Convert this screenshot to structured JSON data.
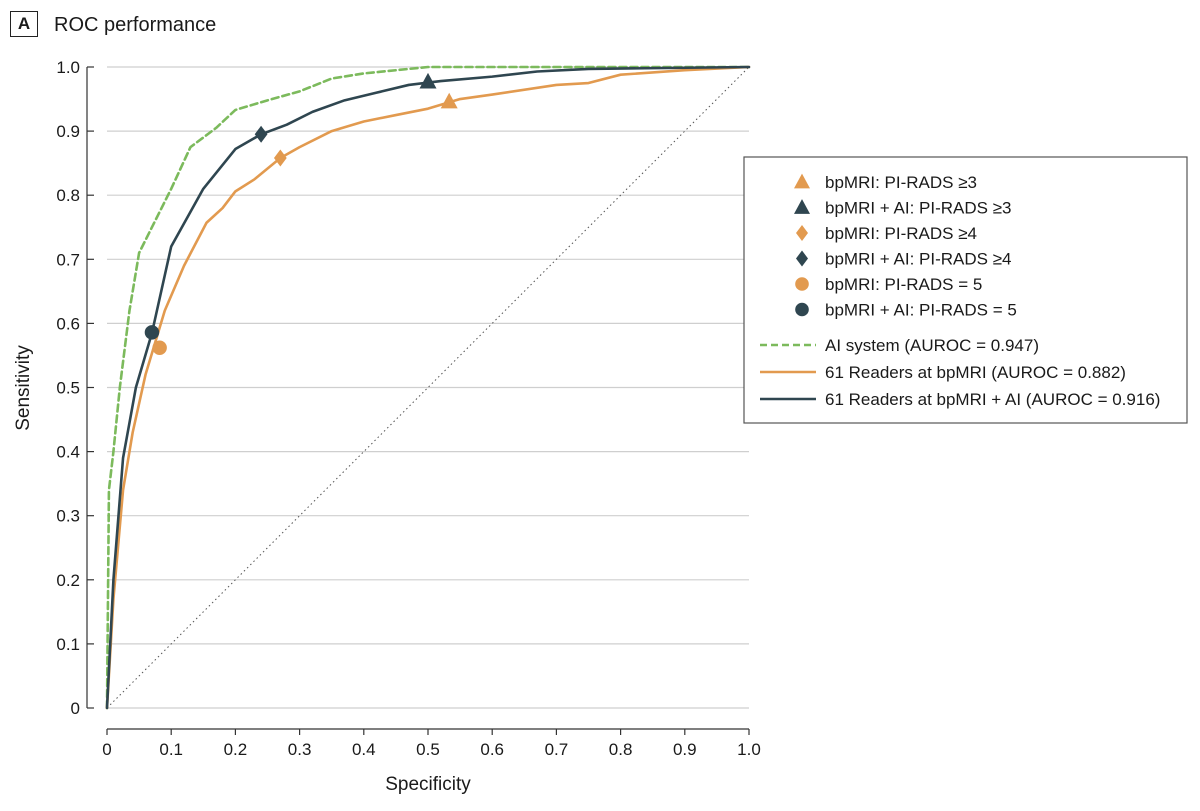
{
  "panel_letter": "A",
  "chart_data": {
    "type": "line",
    "title": "ROC performance",
    "xlabel": "Specificity",
    "ylabel": "Sensitivity",
    "xlim": [
      0,
      1
    ],
    "ylim": [
      0,
      1
    ],
    "xticks": [
      "0",
      "0.1",
      "0.2",
      "0.3",
      "0.4",
      "0.5",
      "0.6",
      "0.7",
      "0.8",
      "0.9",
      "1.0"
    ],
    "yticks": [
      "0",
      "0.1",
      "0.2",
      "0.3",
      "0.4",
      "0.5",
      "0.6",
      "0.7",
      "0.8",
      "0.9",
      "1.0"
    ],
    "grid": "horizontal",
    "legend_position": "right",
    "colors": {
      "ai_system": "#7cba5c",
      "readers": "#e29a4f",
      "readers_ai": "#2f4650",
      "chance": "#555555"
    },
    "series": [
      {
        "name": "AI system (AUROC = 0.947)",
        "style": "dashed",
        "color_key": "ai_system",
        "points": [
          [
            0,
            0
          ],
          [
            0.003,
            0.34
          ],
          [
            0.01,
            0.4
          ],
          [
            0.02,
            0.5
          ],
          [
            0.035,
            0.62
          ],
          [
            0.05,
            0.71
          ],
          [
            0.08,
            0.77
          ],
          [
            0.1,
            0.81
          ],
          [
            0.13,
            0.875
          ],
          [
            0.17,
            0.905
          ],
          [
            0.2,
            0.933
          ],
          [
            0.25,
            0.948
          ],
          [
            0.3,
            0.962
          ],
          [
            0.35,
            0.982
          ],
          [
            0.4,
            0.99
          ],
          [
            0.5,
            1.0
          ],
          [
            0.7,
            1.0
          ],
          [
            1.0,
            1.0
          ]
        ]
      },
      {
        "name": "61 Readers at bpMRI (AUROC = 0.882)",
        "style": "solid",
        "color_key": "readers",
        "points": [
          [
            0,
            0
          ],
          [
            0.01,
            0.17
          ],
          [
            0.025,
            0.34
          ],
          [
            0.04,
            0.43
          ],
          [
            0.06,
            0.52
          ],
          [
            0.09,
            0.62
          ],
          [
            0.12,
            0.69
          ],
          [
            0.155,
            0.757
          ],
          [
            0.18,
            0.78
          ],
          [
            0.2,
            0.806
          ],
          [
            0.23,
            0.825
          ],
          [
            0.27,
            0.858
          ],
          [
            0.3,
            0.875
          ],
          [
            0.35,
            0.9
          ],
          [
            0.4,
            0.915
          ],
          [
            0.45,
            0.925
          ],
          [
            0.5,
            0.935
          ],
          [
            0.55,
            0.95
          ],
          [
            0.6,
            0.957
          ],
          [
            0.7,
            0.972
          ],
          [
            0.75,
            0.975
          ],
          [
            0.8,
            0.988
          ],
          [
            0.9,
            0.995
          ],
          [
            1.0,
            1.0
          ]
        ]
      },
      {
        "name": "61 Readers at bpMRI + AI (AUROC = 0.916)",
        "style": "solid",
        "color_key": "readers_ai",
        "points": [
          [
            0,
            0
          ],
          [
            0.01,
            0.2
          ],
          [
            0.025,
            0.39
          ],
          [
            0.045,
            0.5
          ],
          [
            0.07,
            0.585
          ],
          [
            0.1,
            0.72
          ],
          [
            0.15,
            0.81
          ],
          [
            0.2,
            0.872
          ],
          [
            0.24,
            0.895
          ],
          [
            0.28,
            0.91
          ],
          [
            0.32,
            0.93
          ],
          [
            0.37,
            0.948
          ],
          [
            0.42,
            0.96
          ],
          [
            0.47,
            0.972
          ],
          [
            0.52,
            0.978
          ],
          [
            0.6,
            0.985
          ],
          [
            0.67,
            0.993
          ],
          [
            0.75,
            0.997
          ],
          [
            1.0,
            1.0
          ]
        ]
      }
    ],
    "reference_line": {
      "style": "dotted",
      "points": [
        [
          0,
          0
        ],
        [
          1,
          1
        ]
      ]
    },
    "operating_points": [
      {
        "name": "bpMRI: PI-RADS ≥3",
        "shape": "triangle",
        "color_key": "readers",
        "x": 0.533,
        "y": 0.946
      },
      {
        "name": "bpMRI + AI: PI-RADS ≥3",
        "shape": "triangle",
        "color_key": "readers_ai",
        "x": 0.5,
        "y": 0.977
      },
      {
        "name": "bpMRI: PI-RADS ≥4",
        "shape": "diamond",
        "color_key": "readers",
        "x": 0.27,
        "y": 0.858
      },
      {
        "name": "bpMRI + AI: PI-RADS ≥4",
        "shape": "diamond",
        "color_key": "readers_ai",
        "x": 0.24,
        "y": 0.895
      },
      {
        "name": "bpMRI: PI-RADS = 5",
        "shape": "circle",
        "color_key": "readers",
        "x": 0.082,
        "y": 0.562
      },
      {
        "name": "bpMRI + AI: PI-RADS = 5",
        "shape": "circle",
        "color_key": "readers_ai",
        "x": 0.07,
        "y": 0.586
      }
    ],
    "legend": {
      "markers": [
        {
          "label": "bpMRI: PI-RADS ≥3",
          "shape": "triangle",
          "color_key": "readers"
        },
        {
          "label": "bpMRI + AI: PI-RADS ≥3",
          "shape": "triangle",
          "color_key": "readers_ai"
        },
        {
          "label": "bpMRI: PI-RADS ≥4",
          "shape": "diamond",
          "color_key": "readers"
        },
        {
          "label": "bpMRI + AI: PI-RADS ≥4",
          "shape": "diamond",
          "color_key": "readers_ai"
        },
        {
          "label": "bpMRI: PI-RADS = 5",
          "shape": "circle",
          "color_key": "readers"
        },
        {
          "label": "bpMRI + AI: PI-RADS = 5",
          "shape": "circle",
          "color_key": "readers_ai"
        }
      ],
      "lines": [
        {
          "label": "AI system (AUROC = 0.947)",
          "style": "dashed",
          "color_key": "ai_system"
        },
        {
          "label": "61 Readers at bpMRI (AUROC = 0.882)",
          "style": "solid",
          "color_key": "readers"
        },
        {
          "label": "61 Readers at bpMRI + AI (AUROC = 0.916)",
          "style": "solid",
          "color_key": "readers_ai"
        }
      ]
    }
  }
}
